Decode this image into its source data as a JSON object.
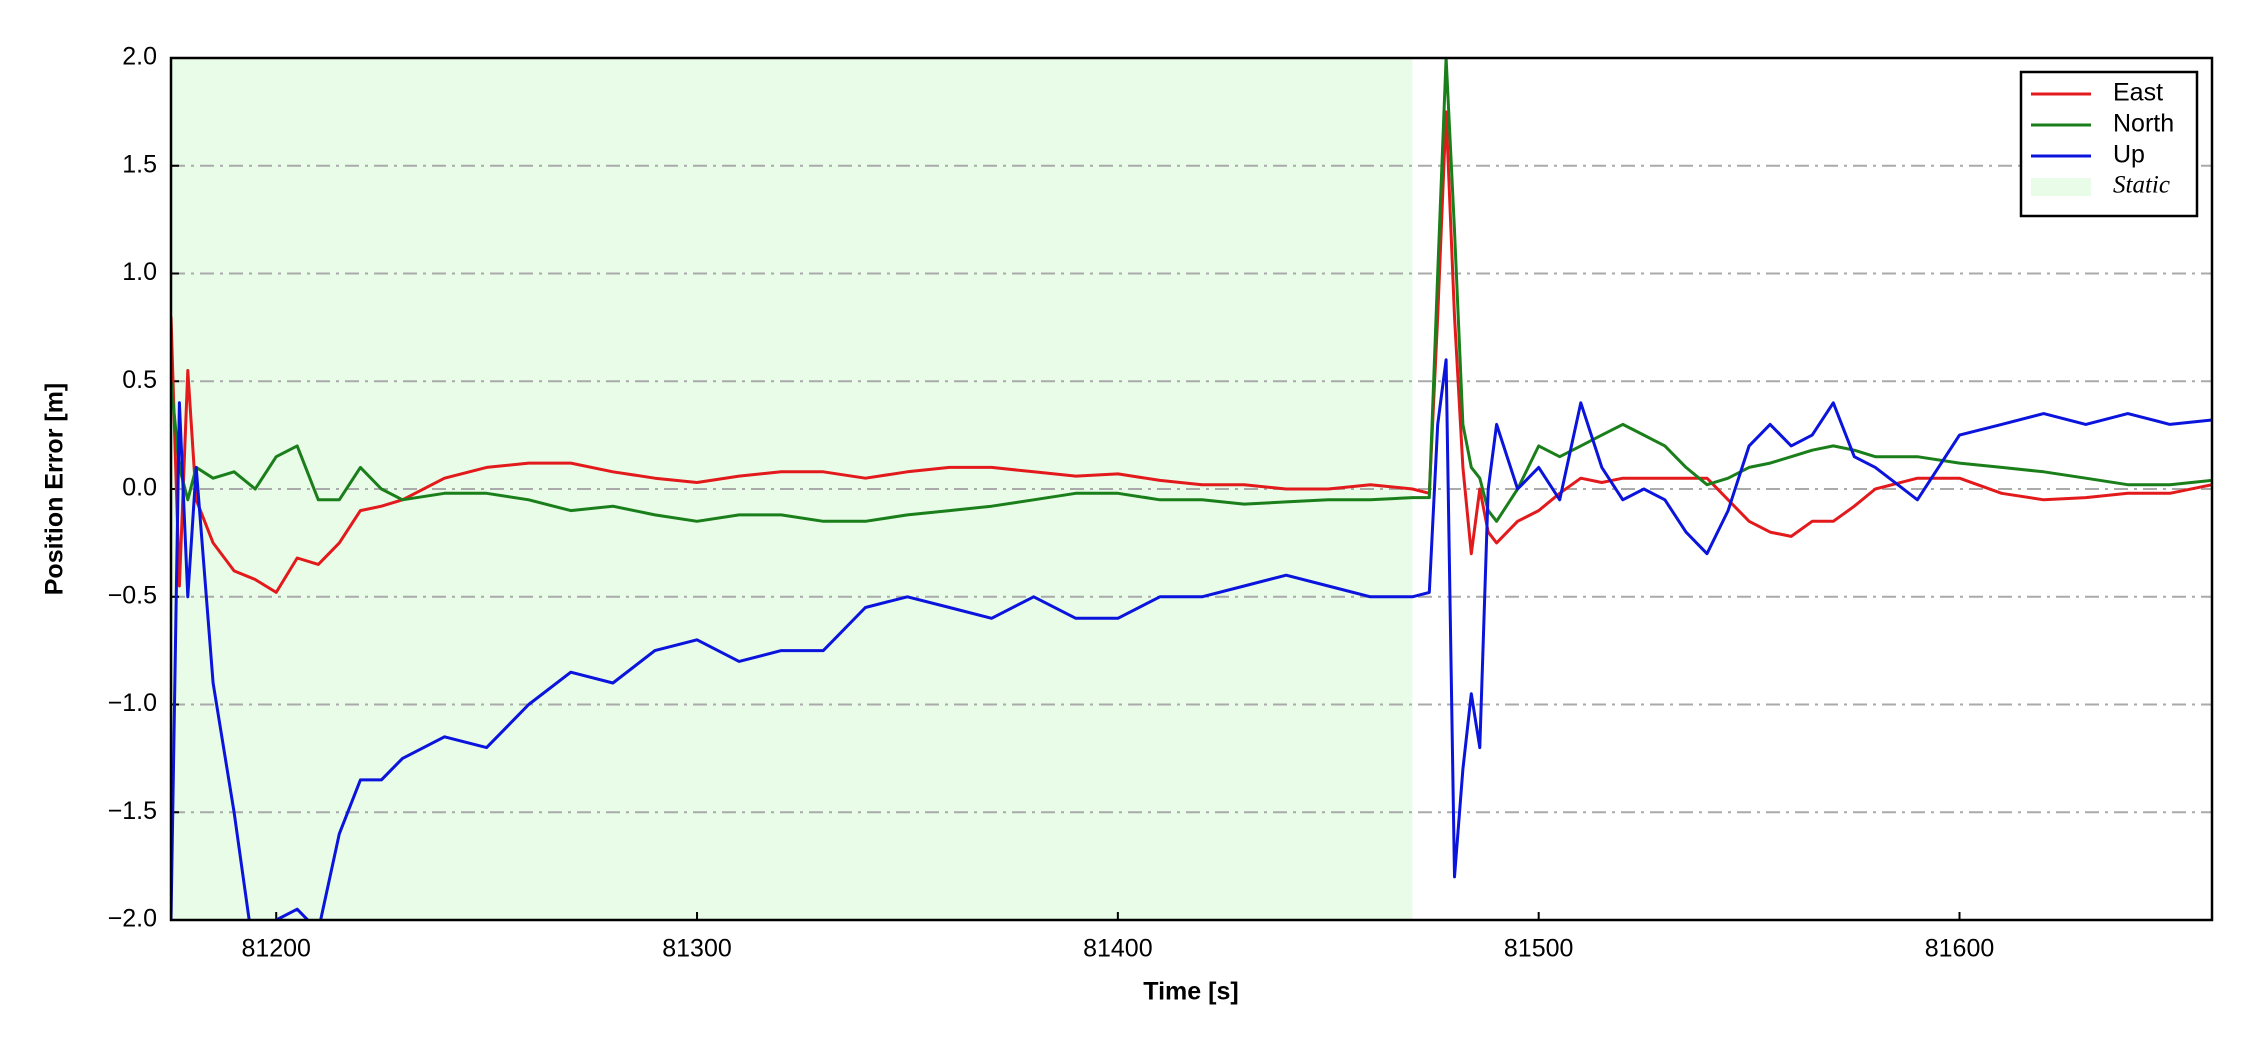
{
  "chart_data": {
    "type": "line",
    "xlabel": "Time [s]",
    "ylabel": "Position Error [m]",
    "x": [
      81175,
      81177,
      81179,
      81181,
      81185,
      81190,
      81195,
      81200,
      81205,
      81210,
      81215,
      81220,
      81225,
      81230,
      81240,
      81250,
      81260,
      81270,
      81280,
      81290,
      81300,
      81310,
      81320,
      81330,
      81340,
      81350,
      81360,
      81370,
      81380,
      81390,
      81400,
      81410,
      81420,
      81430,
      81440,
      81450,
      81460,
      81470,
      81474,
      81476,
      81478,
      81480,
      81482,
      81484,
      81486,
      81488,
      81490,
      81495,
      81500,
      81505,
      81510,
      81515,
      81520,
      81525,
      81530,
      81535,
      81540,
      81545,
      81550,
      81555,
      81560,
      81565,
      81570,
      81575,
      81580,
      81590,
      81600,
      81610,
      81620,
      81630,
      81640,
      81650,
      81660
    ],
    "series": [
      {
        "name": "East",
        "color": "#e31a1c",
        "values": [
          0.8,
          -0.45,
          0.55,
          -0.05,
          -0.25,
          -0.38,
          -0.42,
          -0.48,
          -0.32,
          -0.35,
          -0.25,
          -0.1,
          -0.08,
          -0.05,
          0.05,
          0.1,
          0.12,
          0.12,
          0.08,
          0.05,
          0.03,
          0.06,
          0.08,
          0.08,
          0.05,
          0.08,
          0.1,
          0.1,
          0.08,
          0.06,
          0.07,
          0.04,
          0.02,
          0.02,
          0.0,
          0.0,
          0.02,
          0.0,
          -0.02,
          0.8,
          1.75,
          0.8,
          0.1,
          -0.3,
          0.0,
          -0.2,
          -0.25,
          -0.15,
          -0.1,
          -0.02,
          0.05,
          0.03,
          0.05,
          0.05,
          0.05,
          0.05,
          0.05,
          -0.05,
          -0.15,
          -0.2,
          -0.22,
          -0.15,
          -0.15,
          -0.08,
          0.0,
          0.05,
          0.05,
          -0.02,
          -0.05,
          -0.04,
          -0.02,
          -0.02,
          0.02
        ]
      },
      {
        "name": "North",
        "color": "#1a7f1a",
        "values": [
          0.5,
          0.1,
          -0.05,
          0.1,
          0.05,
          0.08,
          0.0,
          0.15,
          0.2,
          -0.05,
          -0.05,
          0.1,
          0.0,
          -0.05,
          -0.02,
          -0.02,
          -0.05,
          -0.1,
          -0.08,
          -0.12,
          -0.15,
          -0.12,
          -0.12,
          -0.15,
          -0.15,
          -0.12,
          -0.1,
          -0.08,
          -0.05,
          -0.02,
          -0.02,
          -0.05,
          -0.05,
          -0.07,
          -0.06,
          -0.05,
          -0.05,
          -0.04,
          -0.04,
          1.0,
          2.0,
          1.2,
          0.3,
          0.1,
          0.05,
          -0.1,
          -0.15,
          0.0,
          0.2,
          0.15,
          0.2,
          0.25,
          0.3,
          0.25,
          0.2,
          0.1,
          0.02,
          0.05,
          0.1,
          0.12,
          0.15,
          0.18,
          0.2,
          0.18,
          0.15,
          0.15,
          0.12,
          0.1,
          0.08,
          0.05,
          0.02,
          0.02,
          0.04
        ]
      },
      {
        "name": "Up",
        "color": "#0a14dc",
        "values": [
          -2.0,
          0.4,
          -0.5,
          0.1,
          -0.9,
          -1.5,
          -2.2,
          -2.0,
          -1.95,
          -2.05,
          -1.6,
          -1.35,
          -1.35,
          -1.25,
          -1.15,
          -1.2,
          -1.0,
          -0.85,
          -0.9,
          -0.75,
          -0.7,
          -0.8,
          -0.75,
          -0.75,
          -0.55,
          -0.5,
          -0.55,
          -0.6,
          -0.5,
          -0.6,
          -0.6,
          -0.5,
          -0.5,
          -0.45,
          -0.4,
          -0.45,
          -0.5,
          -0.5,
          -0.48,
          0.3,
          0.6,
          -1.8,
          -1.3,
          -0.95,
          -1.2,
          0.0,
          0.3,
          0.0,
          0.1,
          -0.05,
          0.4,
          0.1,
          -0.05,
          0.0,
          -0.05,
          -0.2,
          -0.3,
          -0.1,
          0.2,
          0.3,
          0.2,
          0.25,
          0.4,
          0.15,
          0.1,
          -0.05,
          0.25,
          0.3,
          0.35,
          0.3,
          0.35,
          0.3,
          0.32
        ]
      }
    ],
    "static": {
      "name": "Static",
      "color": "#e8fce8",
      "xlim": [
        81175,
        81470
      ]
    },
    "xlim": [
      81175,
      81660
    ],
    "xticks": [
      81200,
      81300,
      81400,
      81500,
      81600
    ],
    "ylim": [
      -2,
      2
    ],
    "yticks": [
      {
        "value": -2,
        "label": "−2.0"
      },
      {
        "value": -1.5,
        "label": "−1.5"
      },
      {
        "value": -1,
        "label": "−1.0"
      },
      {
        "value": -0.5,
        "label": "−0.5"
      },
      {
        "value": 0,
        "label": "0.0"
      },
      {
        "value": 0.5,
        "label": "0.5"
      },
      {
        "value": 1,
        "label": "1.0"
      },
      {
        "value": 1.5,
        "label": "1.5"
      },
      {
        "value": 2,
        "label": "2.0"
      }
    ],
    "grid": true,
    "legend": "upper right"
  }
}
